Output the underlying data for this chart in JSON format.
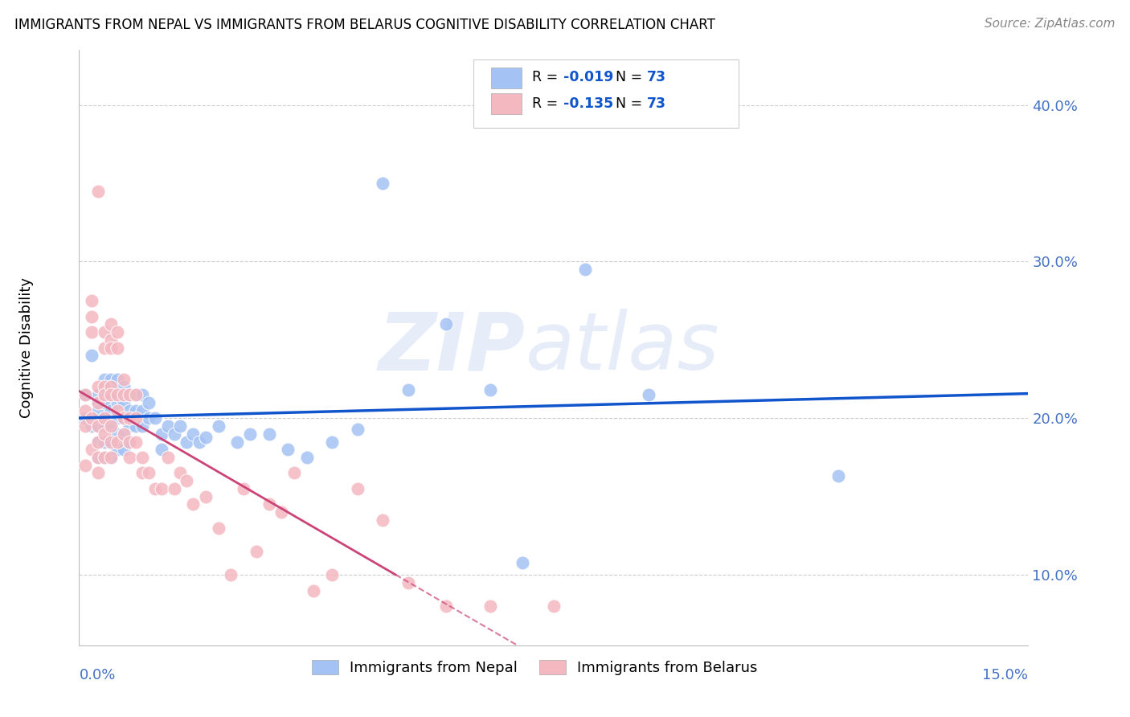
{
  "title": "IMMIGRANTS FROM NEPAL VS IMMIGRANTS FROM BELARUS COGNITIVE DISABILITY CORRELATION CHART",
  "source": "Source: ZipAtlas.com",
  "ylabel": "Cognitive Disability",
  "yticks": [
    0.1,
    0.2,
    0.3,
    0.4
  ],
  "ytick_labels": [
    "10.0%",
    "20.0%",
    "30.0%",
    "40.0%"
  ],
  "xlim": [
    0.0,
    0.15
  ],
  "ylim": [
    0.055,
    0.435
  ],
  "color_nepal": "#a4c2f4",
  "color_belarus": "#f4b8c1",
  "color_nepal_line": "#1155cc",
  "color_belarus_line": "#cc4477",
  "watermark": "ZIPatlas",
  "nepal_x": [
    0.001,
    0.001,
    0.002,
    0.002,
    0.003,
    0.003,
    0.003,
    0.003,
    0.003,
    0.003,
    0.004,
    0.004,
    0.004,
    0.004,
    0.004,
    0.004,
    0.004,
    0.005,
    0.005,
    0.005,
    0.005,
    0.005,
    0.005,
    0.005,
    0.006,
    0.006,
    0.006,
    0.006,
    0.006,
    0.006,
    0.007,
    0.007,
    0.007,
    0.007,
    0.007,
    0.008,
    0.008,
    0.008,
    0.008,
    0.009,
    0.009,
    0.009,
    0.01,
    0.01,
    0.01,
    0.011,
    0.011,
    0.012,
    0.013,
    0.013,
    0.014,
    0.015,
    0.016,
    0.017,
    0.018,
    0.019,
    0.02,
    0.022,
    0.025,
    0.027,
    0.03,
    0.033,
    0.036,
    0.04,
    0.044,
    0.048,
    0.052,
    0.058,
    0.065,
    0.07,
    0.08,
    0.09,
    0.12
  ],
  "nepal_y": [
    0.215,
    0.2,
    0.24,
    0.195,
    0.215,
    0.21,
    0.205,
    0.195,
    0.185,
    0.175,
    0.225,
    0.22,
    0.21,
    0.2,
    0.195,
    0.185,
    0.175,
    0.225,
    0.22,
    0.215,
    0.205,
    0.195,
    0.185,
    0.175,
    0.225,
    0.215,
    0.21,
    0.2,
    0.19,
    0.18,
    0.22,
    0.21,
    0.2,
    0.19,
    0.18,
    0.215,
    0.205,
    0.195,
    0.185,
    0.215,
    0.205,
    0.195,
    0.215,
    0.205,
    0.195,
    0.21,
    0.2,
    0.2,
    0.19,
    0.18,
    0.195,
    0.19,
    0.195,
    0.185,
    0.19,
    0.185,
    0.188,
    0.195,
    0.185,
    0.19,
    0.19,
    0.18,
    0.175,
    0.185,
    0.193,
    0.35,
    0.218,
    0.26,
    0.218,
    0.108,
    0.295,
    0.215,
    0.163
  ],
  "belarus_x": [
    0.001,
    0.001,
    0.001,
    0.001,
    0.002,
    0.002,
    0.002,
    0.002,
    0.002,
    0.003,
    0.003,
    0.003,
    0.003,
    0.003,
    0.003,
    0.003,
    0.004,
    0.004,
    0.004,
    0.004,
    0.004,
    0.004,
    0.004,
    0.005,
    0.005,
    0.005,
    0.005,
    0.005,
    0.005,
    0.005,
    0.005,
    0.006,
    0.006,
    0.006,
    0.006,
    0.006,
    0.007,
    0.007,
    0.007,
    0.007,
    0.008,
    0.008,
    0.008,
    0.008,
    0.009,
    0.009,
    0.009,
    0.01,
    0.01,
    0.011,
    0.012,
    0.013,
    0.014,
    0.015,
    0.016,
    0.017,
    0.018,
    0.02,
    0.022,
    0.024,
    0.026,
    0.028,
    0.03,
    0.032,
    0.034,
    0.037,
    0.04,
    0.044,
    0.048,
    0.052,
    0.058,
    0.065,
    0.075
  ],
  "belarus_y": [
    0.215,
    0.205,
    0.195,
    0.17,
    0.275,
    0.265,
    0.255,
    0.2,
    0.18,
    0.345,
    0.22,
    0.21,
    0.195,
    0.185,
    0.175,
    0.165,
    0.255,
    0.245,
    0.22,
    0.215,
    0.2,
    0.19,
    0.175,
    0.26,
    0.25,
    0.245,
    0.22,
    0.215,
    0.195,
    0.185,
    0.175,
    0.255,
    0.245,
    0.215,
    0.205,
    0.185,
    0.225,
    0.215,
    0.2,
    0.19,
    0.215,
    0.2,
    0.185,
    0.175,
    0.215,
    0.2,
    0.185,
    0.175,
    0.165,
    0.165,
    0.155,
    0.155,
    0.175,
    0.155,
    0.165,
    0.16,
    0.145,
    0.15,
    0.13,
    0.1,
    0.155,
    0.115,
    0.145,
    0.14,
    0.165,
    0.09,
    0.1,
    0.155,
    0.135,
    0.095,
    0.08,
    0.08,
    0.08
  ]
}
